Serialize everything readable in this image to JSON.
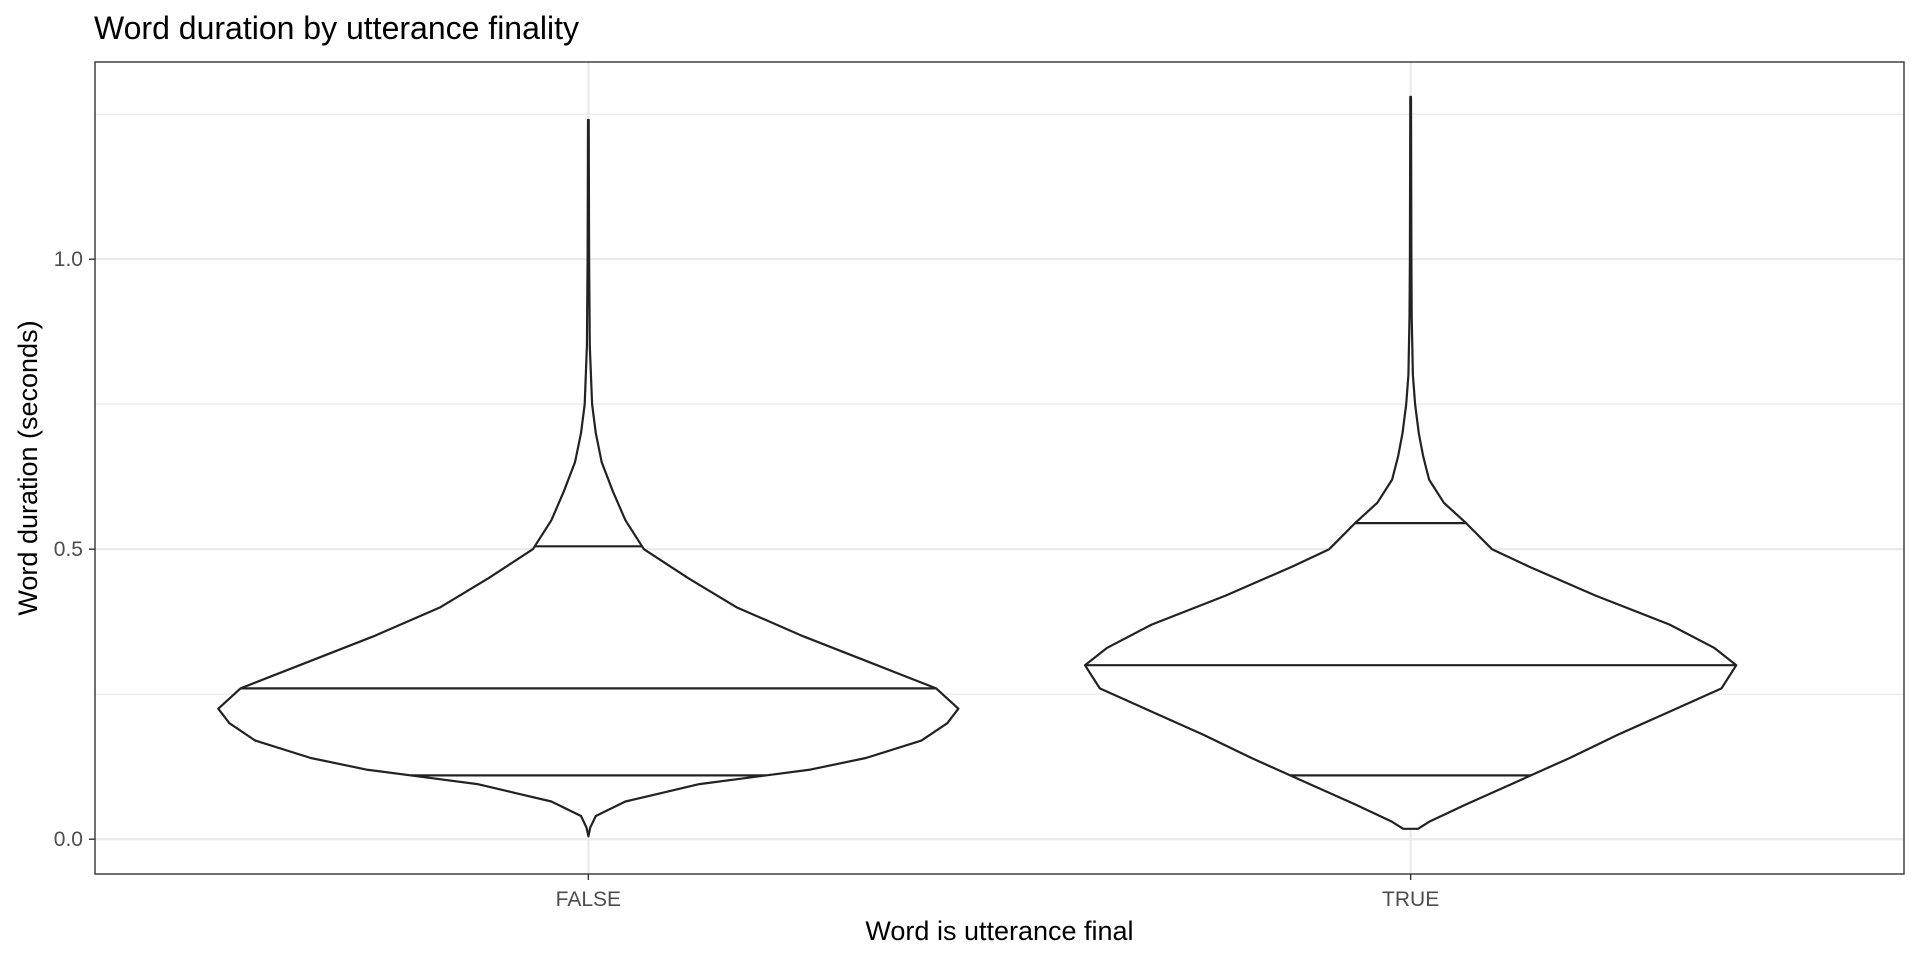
{
  "chart_data": {
    "type": "violin",
    "title": "Word duration by utterance finality",
    "xlabel": "Word is utterance final",
    "ylabel": "Word duration (seconds)",
    "categories": [
      "FALSE",
      "TRUE"
    ],
    "ylim": [
      -0.06,
      1.34
    ],
    "yticks": [
      0.0,
      0.5,
      1.0
    ],
    "ytick_labels": [
      "0.0",
      "0.5",
      "1.0"
    ],
    "grid": true,
    "violins": [
      {
        "category": "FALSE",
        "quantiles": [
          0.11,
          0.26,
          0.505
        ],
        "density": [
          [
            0.005,
            0.0
          ],
          [
            0.02,
            0.005
          ],
          [
            0.04,
            0.02
          ],
          [
            0.065,
            0.1
          ],
          [
            0.08,
            0.2
          ],
          [
            0.095,
            0.3
          ],
          [
            0.105,
            0.42
          ],
          [
            0.12,
            0.6
          ],
          [
            0.14,
            0.75
          ],
          [
            0.17,
            0.9
          ],
          [
            0.2,
            0.97
          ],
          [
            0.225,
            1.0
          ],
          [
            0.26,
            0.94
          ],
          [
            0.3,
            0.78
          ],
          [
            0.35,
            0.58
          ],
          [
            0.4,
            0.4
          ],
          [
            0.45,
            0.27
          ],
          [
            0.5,
            0.15
          ],
          [
            0.55,
            0.1
          ],
          [
            0.6,
            0.066
          ],
          [
            0.65,
            0.036
          ],
          [
            0.7,
            0.02
          ],
          [
            0.75,
            0.01
          ],
          [
            0.85,
            0.004
          ],
          [
            1.0,
            0.002
          ],
          [
            1.24,
            0.001
          ]
        ]
      },
      {
        "category": "TRUE",
        "quantiles": [
          0.11,
          0.3,
          0.545
        ],
        "density": [
          [
            0.018,
            0.02
          ],
          [
            0.03,
            0.05
          ],
          [
            0.06,
            0.15
          ],
          [
            0.1,
            0.29
          ],
          [
            0.14,
            0.43
          ],
          [
            0.18,
            0.56
          ],
          [
            0.22,
            0.7
          ],
          [
            0.26,
            0.84
          ],
          [
            0.3,
            0.88
          ],
          [
            0.33,
            0.82
          ],
          [
            0.37,
            0.7
          ],
          [
            0.42,
            0.5
          ],
          [
            0.47,
            0.32
          ],
          [
            0.5,
            0.22
          ],
          [
            0.545,
            0.15
          ],
          [
            0.58,
            0.09
          ],
          [
            0.62,
            0.05
          ],
          [
            0.66,
            0.034
          ],
          [
            0.7,
            0.022
          ],
          [
            0.75,
            0.012
          ],
          [
            0.8,
            0.006
          ],
          [
            0.9,
            0.003
          ],
          [
            1.0,
            0.002
          ],
          [
            1.28,
            0.001
          ]
        ]
      }
    ]
  }
}
